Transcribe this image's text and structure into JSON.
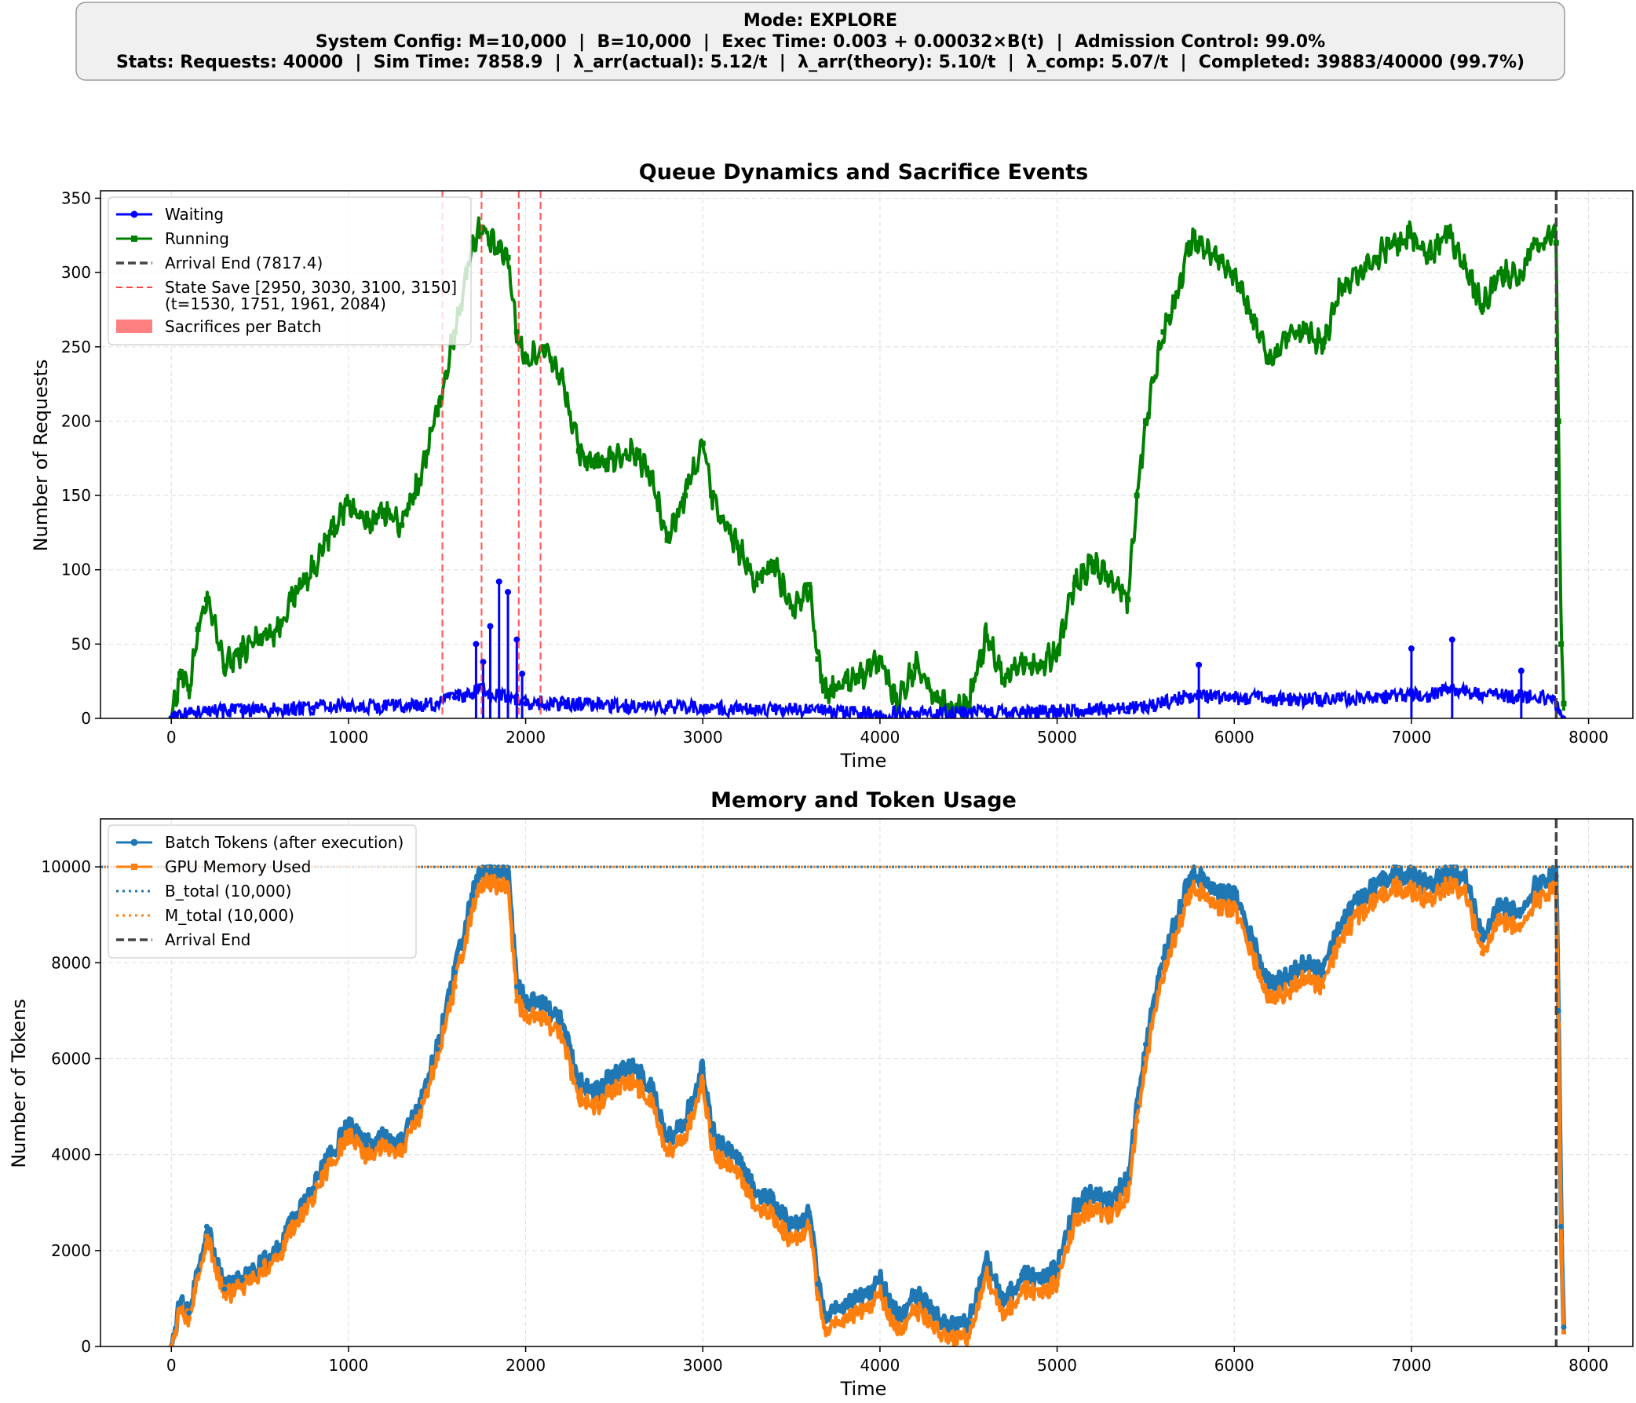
{
  "header": {
    "line1": "Mode: EXPLORE",
    "line2": "System Config: M=10,000  |  B=10,000  |  Exec Time: 0.003 + 0.00032×B(t)  |  Admission Control: 99.0%",
    "line3": "Stats: Requests: 40000  |  Sim Time: 7858.9  |  λ_arr(actual): 5.12/t  |  λ_arr(theory): 5.10/t  |  λ_comp: 5.07/t  |  Completed: 39883/40000 (99.7%)"
  },
  "colors": {
    "waiting": "#0000ff",
    "running": "#008000",
    "state_save": "#ff4444",
    "sacrifice": "#ff8080",
    "arrival_end": "#444444",
    "batch_tokens": "#1f77b4",
    "gpu_memory": "#ff7f0e"
  },
  "chart_data": [
    {
      "type": "line",
      "title": "Queue Dynamics and Sacrifice Events",
      "xlabel": "Time",
      "ylabel": "Number of Requests",
      "xlim": [
        -400,
        8250
      ],
      "ylim": [
        0,
        355
      ],
      "xticks": [
        0,
        1000,
        2000,
        3000,
        4000,
        5000,
        6000,
        7000,
        8000
      ],
      "yticks": [
        0,
        50,
        100,
        150,
        200,
        250,
        300,
        350
      ],
      "grid": true,
      "legend_position": "top-left",
      "legend": [
        {
          "label": "Waiting",
          "kind": "line-dot",
          "color": "#0000ff"
        },
        {
          "label": "Running",
          "kind": "line-square",
          "color": "#008000"
        },
        {
          "label": "Arrival End (7817.4)",
          "kind": "dash",
          "color": "#444444"
        },
        {
          "label": "State Save [2950, 3030, 3100, 3150]",
          "label2": "(t=1530, 1751, 1961, 2084)",
          "kind": "dash-thin",
          "color": "#ff4444"
        },
        {
          "label": "Sacrifices per Batch",
          "kind": "patch",
          "color": "#ff8080"
        }
      ],
      "vlines_state_save": [
        1530,
        1751,
        1961,
        2084
      ],
      "vline_arrival_end": 7817.4,
      "series": [
        {
          "name": "Running",
          "x": [
            0,
            50,
            100,
            150,
            200,
            300,
            400,
            500,
            600,
            700,
            800,
            900,
            1000,
            1100,
            1200,
            1300,
            1400,
            1500,
            1600,
            1700,
            1750,
            1800,
            1850,
            1900,
            1950,
            2000,
            2100,
            2200,
            2300,
            2400,
            2500,
            2600,
            2700,
            2800,
            2900,
            3000,
            3050,
            3100,
            3200,
            3300,
            3400,
            3500,
            3600,
            3650,
            3700,
            3800,
            3900,
            4000,
            4100,
            4200,
            4300,
            4400,
            4500,
            4600,
            4700,
            4800,
            4900,
            5000,
            5100,
            5200,
            5300,
            5400,
            5450,
            5500,
            5600,
            5700,
            5750,
            5800,
            5900,
            6000,
            6100,
            6200,
            6300,
            6400,
            6500,
            6600,
            6700,
            6800,
            6900,
            7000,
            7100,
            7200,
            7300,
            7400,
            7500,
            7600,
            7700,
            7800,
            7817,
            7830,
            7845,
            7860
          ],
          "values": [
            0,
            30,
            20,
            60,
            80,
            35,
            45,
            55,
            60,
            85,
            100,
            125,
            145,
            130,
            140,
            130,
            160,
            205,
            260,
            320,
            330,
            320,
            315,
            310,
            260,
            240,
            250,
            230,
            180,
            170,
            175,
            180,
            165,
            120,
            150,
            185,
            150,
            135,
            115,
            90,
            105,
            75,
            90,
            40,
            15,
            25,
            30,
            40,
            10,
            35,
            15,
            5,
            10,
            55,
            25,
            40,
            35,
            45,
            90,
            105,
            95,
            80,
            150,
            200,
            260,
            295,
            320,
            320,
            310,
            300,
            270,
            240,
            255,
            260,
            250,
            290,
            300,
            310,
            320,
            325,
            310,
            330,
            305,
            275,
            300,
            295,
            320,
            325,
            320,
            200,
            50,
            10
          ]
        },
        {
          "name": "Waiting",
          "x": [
            0,
            100,
            200,
            400,
            600,
            800,
            1000,
            1200,
            1400,
            1500,
            1600,
            1700,
            1750,
            1800,
            1850,
            1900,
            1950,
            2000,
            2200,
            2400,
            2600,
            2800,
            3000,
            3200,
            3400,
            3600,
            3800,
            4000,
            4200,
            4400,
            4600,
            4800,
            5000,
            5200,
            5400,
            5500,
            5600,
            5700,
            5800,
            6000,
            6200,
            6400,
            6600,
            6800,
            7000,
            7100,
            7200,
            7300,
            7400,
            7600,
            7800,
            7830,
            7860
          ],
          "values": [
            0,
            4,
            5,
            5,
            6,
            7,
            9,
            8,
            9,
            10,
            14,
            16,
            22,
            15,
            18,
            14,
            12,
            10,
            10,
            9,
            8,
            8,
            7,
            6,
            6,
            5,
            4,
            3,
            3,
            3,
            4,
            4,
            5,
            6,
            7,
            8,
            10,
            14,
            15,
            14,
            13,
            12,
            13,
            14,
            16,
            15,
            20,
            18,
            16,
            15,
            14,
            5,
            0
          ]
        }
      ]
    },
    {
      "type": "line",
      "title": "Memory and Token Usage",
      "xlabel": "Time",
      "ylabel": "Number of Tokens",
      "xlim": [
        -400,
        8250
      ],
      "ylim": [
        0,
        11000
      ],
      "xticks": [
        0,
        1000,
        2000,
        3000,
        4000,
        5000,
        6000,
        7000,
        8000
      ],
      "yticks": [
        0,
        2000,
        4000,
        6000,
        8000,
        10000
      ],
      "grid": true,
      "legend_position": "top-left",
      "legend": [
        {
          "label": "Batch Tokens (after execution)",
          "kind": "line-dot",
          "color": "#1f77b4"
        },
        {
          "label": "GPU Memory Used",
          "kind": "line-square",
          "color": "#ff7f0e"
        },
        {
          "label": "B_total (10,000)",
          "kind": "dotted",
          "color": "#1f77b4"
        },
        {
          "label": "M_total (10,000)",
          "kind": "dotted",
          "color": "#ff7f0e"
        },
        {
          "label": "Arrival End",
          "kind": "dash",
          "color": "#444444"
        }
      ],
      "hlines": [
        10000
      ],
      "vline_arrival_end": 7817.4,
      "series": [
        {
          "name": "Batch Tokens (after execution)",
          "x": [
            0,
            50,
            100,
            150,
            200,
            300,
            400,
            500,
            600,
            700,
            800,
            900,
            1000,
            1100,
            1200,
            1300,
            1400,
            1500,
            1600,
            1700,
            1750,
            1800,
            1850,
            1900,
            1950,
            2000,
            2100,
            2200,
            2300,
            2400,
            2500,
            2600,
            2700,
            2800,
            2900,
            3000,
            3050,
            3100,
            3200,
            3300,
            3400,
            3500,
            3600,
            3650,
            3700,
            3800,
            3900,
            4000,
            4100,
            4200,
            4300,
            4400,
            4500,
            4600,
            4700,
            4800,
            4900,
            5000,
            5100,
            5200,
            5300,
            5400,
            5450,
            5500,
            5600,
            5700,
            5750,
            5800,
            5900,
            6000,
            6100,
            6200,
            6300,
            6400,
            6500,
            6600,
            6700,
            6800,
            6900,
            7000,
            7100,
            7200,
            7300,
            7400,
            7500,
            7600,
            7700,
            7800,
            7817,
            7830,
            7845,
            7860
          ],
          "values": [
            0,
            900,
            700,
            1600,
            2500,
            1200,
            1400,
            1700,
            2000,
            2700,
            3300,
            4000,
            4600,
            4200,
            4400,
            4300,
            5000,
            6200,
            7800,
            9400,
            9900,
            10000,
            9900,
            9900,
            7500,
            7200,
            7100,
            6800,
            5500,
            5300,
            5700,
            5800,
            5500,
            4300,
            4700,
            5800,
            4500,
            4200,
            3900,
            3200,
            3000,
            2500,
            2800,
            1300,
            600,
            900,
            1000,
            1400,
            600,
            1100,
            700,
            400,
            500,
            1800,
            900,
            1500,
            1400,
            1600,
            2900,
            3200,
            3000,
            3500,
            5000,
            6300,
            8100,
            9200,
            9800,
            9800,
            9500,
            9400,
            8500,
            7500,
            7700,
            8000,
            7800,
            8800,
            9300,
            9600,
            9900,
            9800,
            9600,
            9900,
            9800,
            8500,
            9200,
            9000,
            9600,
            9800,
            9800,
            7000,
            2500,
            400
          ]
        },
        {
          "name": "GPU Memory Used",
          "x": [
            0,
            50,
            100,
            150,
            200,
            300,
            400,
            500,
            600,
            700,
            800,
            900,
            1000,
            1100,
            1200,
            1300,
            1400,
            1500,
            1600,
            1700,
            1750,
            1800,
            1850,
            1900,
            1950,
            2000,
            2100,
            2200,
            2300,
            2400,
            2500,
            2600,
            2700,
            2800,
            2900,
            3000,
            3050,
            3100,
            3200,
            3300,
            3400,
            3500,
            3600,
            3650,
            3700,
            3800,
            3900,
            4000,
            4100,
            4200,
            4300,
            4400,
            4500,
            4600,
            4700,
            4800,
            4900,
            5000,
            5100,
            5200,
            5300,
            5400,
            5450,
            5500,
            5600,
            5700,
            5750,
            5800,
            5900,
            6000,
            6100,
            6200,
            6300,
            6400,
            6500,
            6600,
            6700,
            6800,
            6900,
            7000,
            7100,
            7200,
            7300,
            7400,
            7500,
            7600,
            7700,
            7800,
            7817,
            7830,
            7845,
            7860
          ],
          "values": [
            0,
            750,
            580,
            1450,
            2300,
            1050,
            1250,
            1550,
            1850,
            2550,
            3100,
            3800,
            4400,
            4000,
            4200,
            4100,
            4800,
            6000,
            7500,
            9100,
            9600,
            9700,
            9600,
            9600,
            7200,
            6900,
            6800,
            6500,
            5200,
            5000,
            5400,
            5500,
            5200,
            4000,
            4400,
            5500,
            4200,
            3900,
            3600,
            2900,
            2700,
            2200,
            2500,
            1000,
            300,
            600,
            700,
            1100,
            300,
            800,
            400,
            150,
            200,
            1500,
            600,
            1200,
            1100,
            1300,
            2600,
            2900,
            2700,
            3200,
            4700,
            6000,
            7800,
            8900,
            9500,
            9500,
            9200,
            9100,
            8200,
            7200,
            7400,
            7700,
            7500,
            8500,
            9000,
            9300,
            9600,
            9500,
            9300,
            9600,
            9500,
            8200,
            8900,
            8700,
            9300,
            9500,
            9500,
            6700,
            2200,
            300
          ]
        }
      ]
    }
  ]
}
